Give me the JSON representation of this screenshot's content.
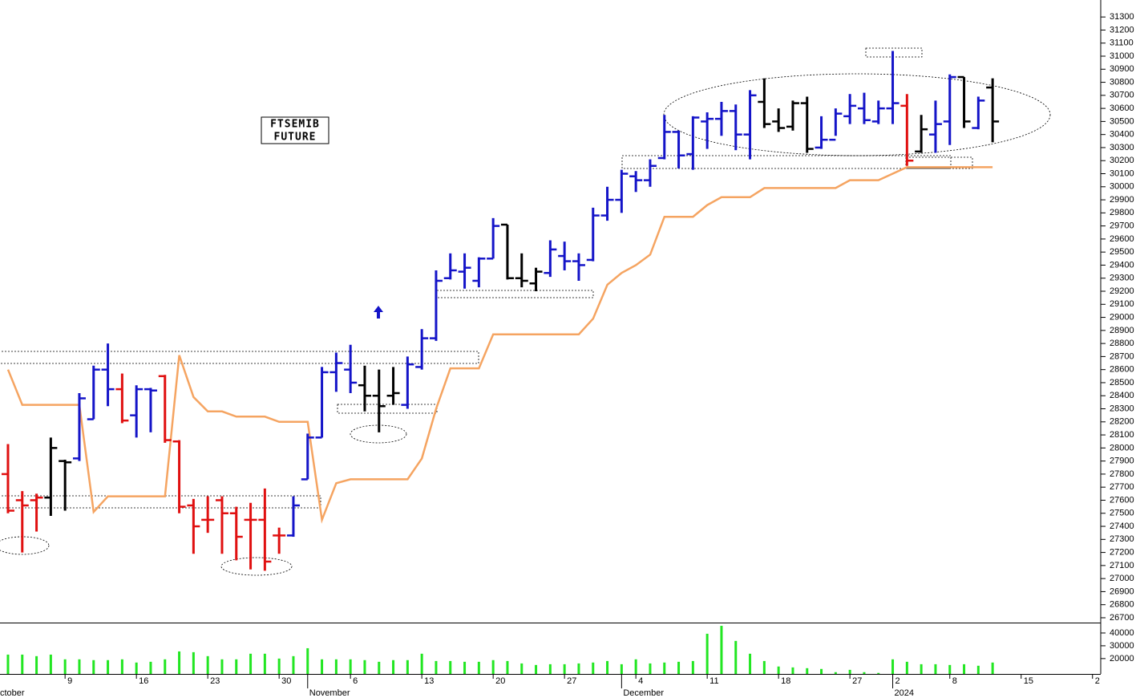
{
  "chart_data": {
    "type": "ohlc",
    "label_lines": [
      "FTSEMIB",
      "FUTURE"
    ],
    "x": [
      0,
      1,
      2,
      3,
      4,
      5,
      6,
      7,
      8,
      9,
      10,
      11,
      12,
      13,
      14,
      15,
      16,
      17,
      18,
      19,
      20,
      21,
      22,
      23,
      24,
      25,
      26,
      27,
      28,
      29,
      30,
      31,
      32,
      33,
      34,
      35,
      36,
      37,
      38,
      39,
      40,
      41,
      42,
      43,
      44,
      45,
      46,
      47,
      48,
      49,
      50,
      51,
      52,
      53,
      54,
      55,
      56,
      57,
      58,
      59,
      60,
      61,
      62,
      63,
      64,
      65,
      66,
      67,
      68,
      69
    ],
    "xlim": [
      -0.56,
      76.52
    ],
    "xticks": [
      {
        "value": 4,
        "label": "9"
      },
      {
        "value": 9,
        "label": "16"
      },
      {
        "value": 14,
        "label": "23"
      },
      {
        "value": 19,
        "label": "30"
      },
      {
        "value": 24,
        "label": "6"
      },
      {
        "value": 29,
        "label": "13"
      },
      {
        "value": 34,
        "label": "20"
      },
      {
        "value": 39,
        "label": "27"
      },
      {
        "value": 44,
        "label": "4"
      },
      {
        "value": 49,
        "label": "11"
      },
      {
        "value": 54,
        "label": "18"
      },
      {
        "value": 59,
        "label": "27"
      },
      {
        "value": 62,
        "label": "2"
      },
      {
        "value": 66,
        "label": "8"
      },
      {
        "value": 71,
        "label": "15"
      },
      {
        "value": 76,
        "label": "2"
      }
    ],
    "month_ticks": [
      {
        "value": -1,
        "label": "ctober"
      },
      {
        "value": 21,
        "label": "November"
      },
      {
        "value": 43,
        "label": "December"
      },
      {
        "value": 62,
        "label": "2024"
      }
    ],
    "ylim": [
      26663,
      31430
    ],
    "yticks": [
      26700,
      26800,
      26900,
      27000,
      27100,
      27200,
      27300,
      27400,
      27500,
      27600,
      27700,
      27800,
      27900,
      28000,
      28100,
      28200,
      28300,
      28400,
      28500,
      28600,
      28700,
      28800,
      28900,
      29000,
      29100,
      29200,
      29300,
      29400,
      29500,
      29600,
      29700,
      29800,
      29900,
      30000,
      30100,
      30200,
      30300,
      30400,
      30500,
      30600,
      30700,
      30800,
      30900,
      31000,
      31100,
      31200,
      31300
    ],
    "open": [
      27800,
      27600,
      27600,
      27620,
      27900,
      27920,
      28220,
      28600,
      28450,
      28250,
      28450,
      28550,
      28050,
      27560,
      27450,
      27600,
      27500,
      27450,
      27450,
      27330,
      27330,
      27760,
      28080,
      28580,
      28600,
      28480,
      28400,
      28400,
      28330,
      28620,
      28840,
      29300,
      29350,
      29280,
      29450,
      29710,
      29300,
      29260,
      29340,
      29470,
      29430,
      29440,
      29780,
      29900,
      30080,
      30050,
      30220,
      30420,
      30250,
      30500,
      30520,
      30580,
      30400,
      30650,
      30500,
      30460,
      30640,
      30300,
      30360,
      30540,
      30600,
      30500,
      30600,
      30620,
      30270,
      30400,
      30500,
      30840,
      30450,
      30760
    ],
    "high": [
      28030,
      27670,
      27650,
      28080,
      27910,
      28420,
      28630,
      28800,
      28570,
      28480,
      28460,
      28560,
      28060,
      27610,
      27630,
      27630,
      27550,
      27580,
      27690,
      27390,
      27630,
      28110,
      28620,
      28730,
      28790,
      28630,
      28600,
      28620,
      28700,
      28910,
      29360,
      29490,
      29490,
      29460,
      29760,
      29710,
      29490,
      29380,
      29590,
      29580,
      29490,
      29840,
      30000,
      30130,
      30120,
      30210,
      30550,
      30430,
      30540,
      30570,
      30650,
      30630,
      30740,
      30830,
      30600,
      30660,
      30690,
      30540,
      30600,
      30710,
      30720,
      30660,
      31040,
      30710,
      30550,
      30660,
      30860,
      30840,
      30690,
      30830
    ],
    "low": [
      27500,
      27200,
      27360,
      27480,
      27520,
      27900,
      28220,
      28320,
      28190,
      28080,
      28120,
      28040,
      27500,
      27190,
      27350,
      27190,
      27140,
      27070,
      27060,
      27190,
      27320,
      27760,
      28080,
      28430,
      28420,
      28280,
      28120,
      28330,
      28300,
      28600,
      28820,
      29290,
      29220,
      29230,
      29450,
      29290,
      29230,
      29200,
      29310,
      29360,
      29280,
      29430,
      29740,
      29800,
      29960,
      30000,
      30210,
      30140,
      30130,
      30290,
      30390,
      30280,
      30210,
      30450,
      30420,
      30430,
      30260,
      30290,
      30390,
      30480,
      30480,
      30480,
      30480,
      30160,
      30260,
      30260,
      30320,
      30450,
      30440,
      30340
    ],
    "close": [
      27520,
      27560,
      27620,
      28000,
      27890,
      28380,
      28600,
      28450,
      28210,
      28450,
      28440,
      28060,
      27550,
      27400,
      27450,
      27500,
      27320,
      27450,
      27130,
      27330,
      27560,
      28080,
      28580,
      28650,
      28500,
      28400,
      28320,
      28420,
      28640,
      28840,
      29280,
      29360,
      29380,
      29450,
      29700,
      29300,
      29280,
      29350,
      29520,
      29430,
      29400,
      29780,
      29900,
      30100,
      30050,
      30160,
      30420,
      30240,
      30530,
      30520,
      30580,
      30400,
      30700,
      30480,
      30450,
      30640,
      30290,
      30360,
      30560,
      30620,
      30510,
      30600,
      30640,
      30200,
      30440,
      30480,
      30840,
      30500,
      30660,
      30500
    ],
    "colors": [
      "#e01010",
      "#e01010",
      "#e01010",
      "#000000",
      "#000000",
      "#1414c8",
      "#1414c8",
      "#1414c8",
      "#e01010",
      "#1414c8",
      "#1414c8",
      "#e01010",
      "#e01010",
      "#e01010",
      "#e01010",
      "#e01010",
      "#e01010",
      "#e01010",
      "#e01010",
      "#e01010",
      "#1414c8",
      "#1414c8",
      "#1414c8",
      "#1414c8",
      "#1414c8",
      "#000000",
      "#000000",
      "#000000",
      "#1414c8",
      "#1414c8",
      "#1414c8",
      "#1414c8",
      "#1414c8",
      "#1414c8",
      "#1414c8",
      "#000000",
      "#000000",
      "#000000",
      "#1414c8",
      "#1414c8",
      "#1414c8",
      "#1414c8",
      "#1414c8",
      "#1414c8",
      "#1414c8",
      "#1414c8",
      "#1414c8",
      "#1414c8",
      "#1414c8",
      "#1414c8",
      "#1414c8",
      "#1414c8",
      "#1414c8",
      "#000000",
      "#000000",
      "#000000",
      "#000000",
      "#1414c8",
      "#1414c8",
      "#1414c8",
      "#1414c8",
      "#1414c8",
      "#1414c8",
      "#e01010",
      "#000000",
      "#1414c8",
      "#1414c8",
      "#000000",
      "#1414c8",
      "#000000"
    ],
    "stop": {
      "color": "#f5a461",
      "values": [
        28600,
        28330,
        28330,
        28330,
        28330,
        28330,
        27510,
        27630,
        27630,
        27630,
        27630,
        27630,
        28710,
        28390,
        28280,
        28280,
        28240,
        28240,
        28240,
        28200,
        28200,
        28200,
        27450,
        27730,
        27760,
        27760,
        27760,
        27760,
        27760,
        27920,
        28300,
        28610,
        28610,
        28610,
        28870,
        28870,
        28870,
        28870,
        28870,
        28870,
        28870,
        28990,
        29250,
        29340,
        29400,
        29480,
        29770,
        29770,
        29770,
        29860,
        29920,
        29920,
        29920,
        29990,
        29990,
        29990,
        29990,
        29990,
        29990,
        30050,
        30050,
        30050,
        30100,
        30150,
        30150,
        30150,
        30150,
        30150,
        30150,
        30150
      ]
    },
    "volume": {
      "color": "#22e622",
      "ylim": [
        8000,
        47500
      ],
      "yticks": [
        20000,
        30000,
        40000
      ],
      "values": [
        23100,
        23100,
        21900,
        23100,
        19400,
        19400,
        18800,
        18800,
        19400,
        16900,
        17500,
        19400,
        25600,
        25000,
        21900,
        19400,
        19400,
        23800,
        23800,
        20000,
        21900,
        28100,
        19400,
        19400,
        19400,
        18800,
        17500,
        18800,
        18800,
        23800,
        18100,
        18100,
        17500,
        17500,
        18800,
        18100,
        16200,
        15000,
        15600,
        15600,
        16200,
        16900,
        18100,
        15600,
        19400,
        16200,
        16900,
        17500,
        18100,
        39400,
        45600,
        33800,
        23800,
        18100,
        13800,
        13100,
        12500,
        11900,
        9400,
        11200,
        9400,
        8800,
        19400,
        17500,
        15600,
        15600,
        15000,
        15600,
        14400,
        16900
      ]
    }
  }
}
